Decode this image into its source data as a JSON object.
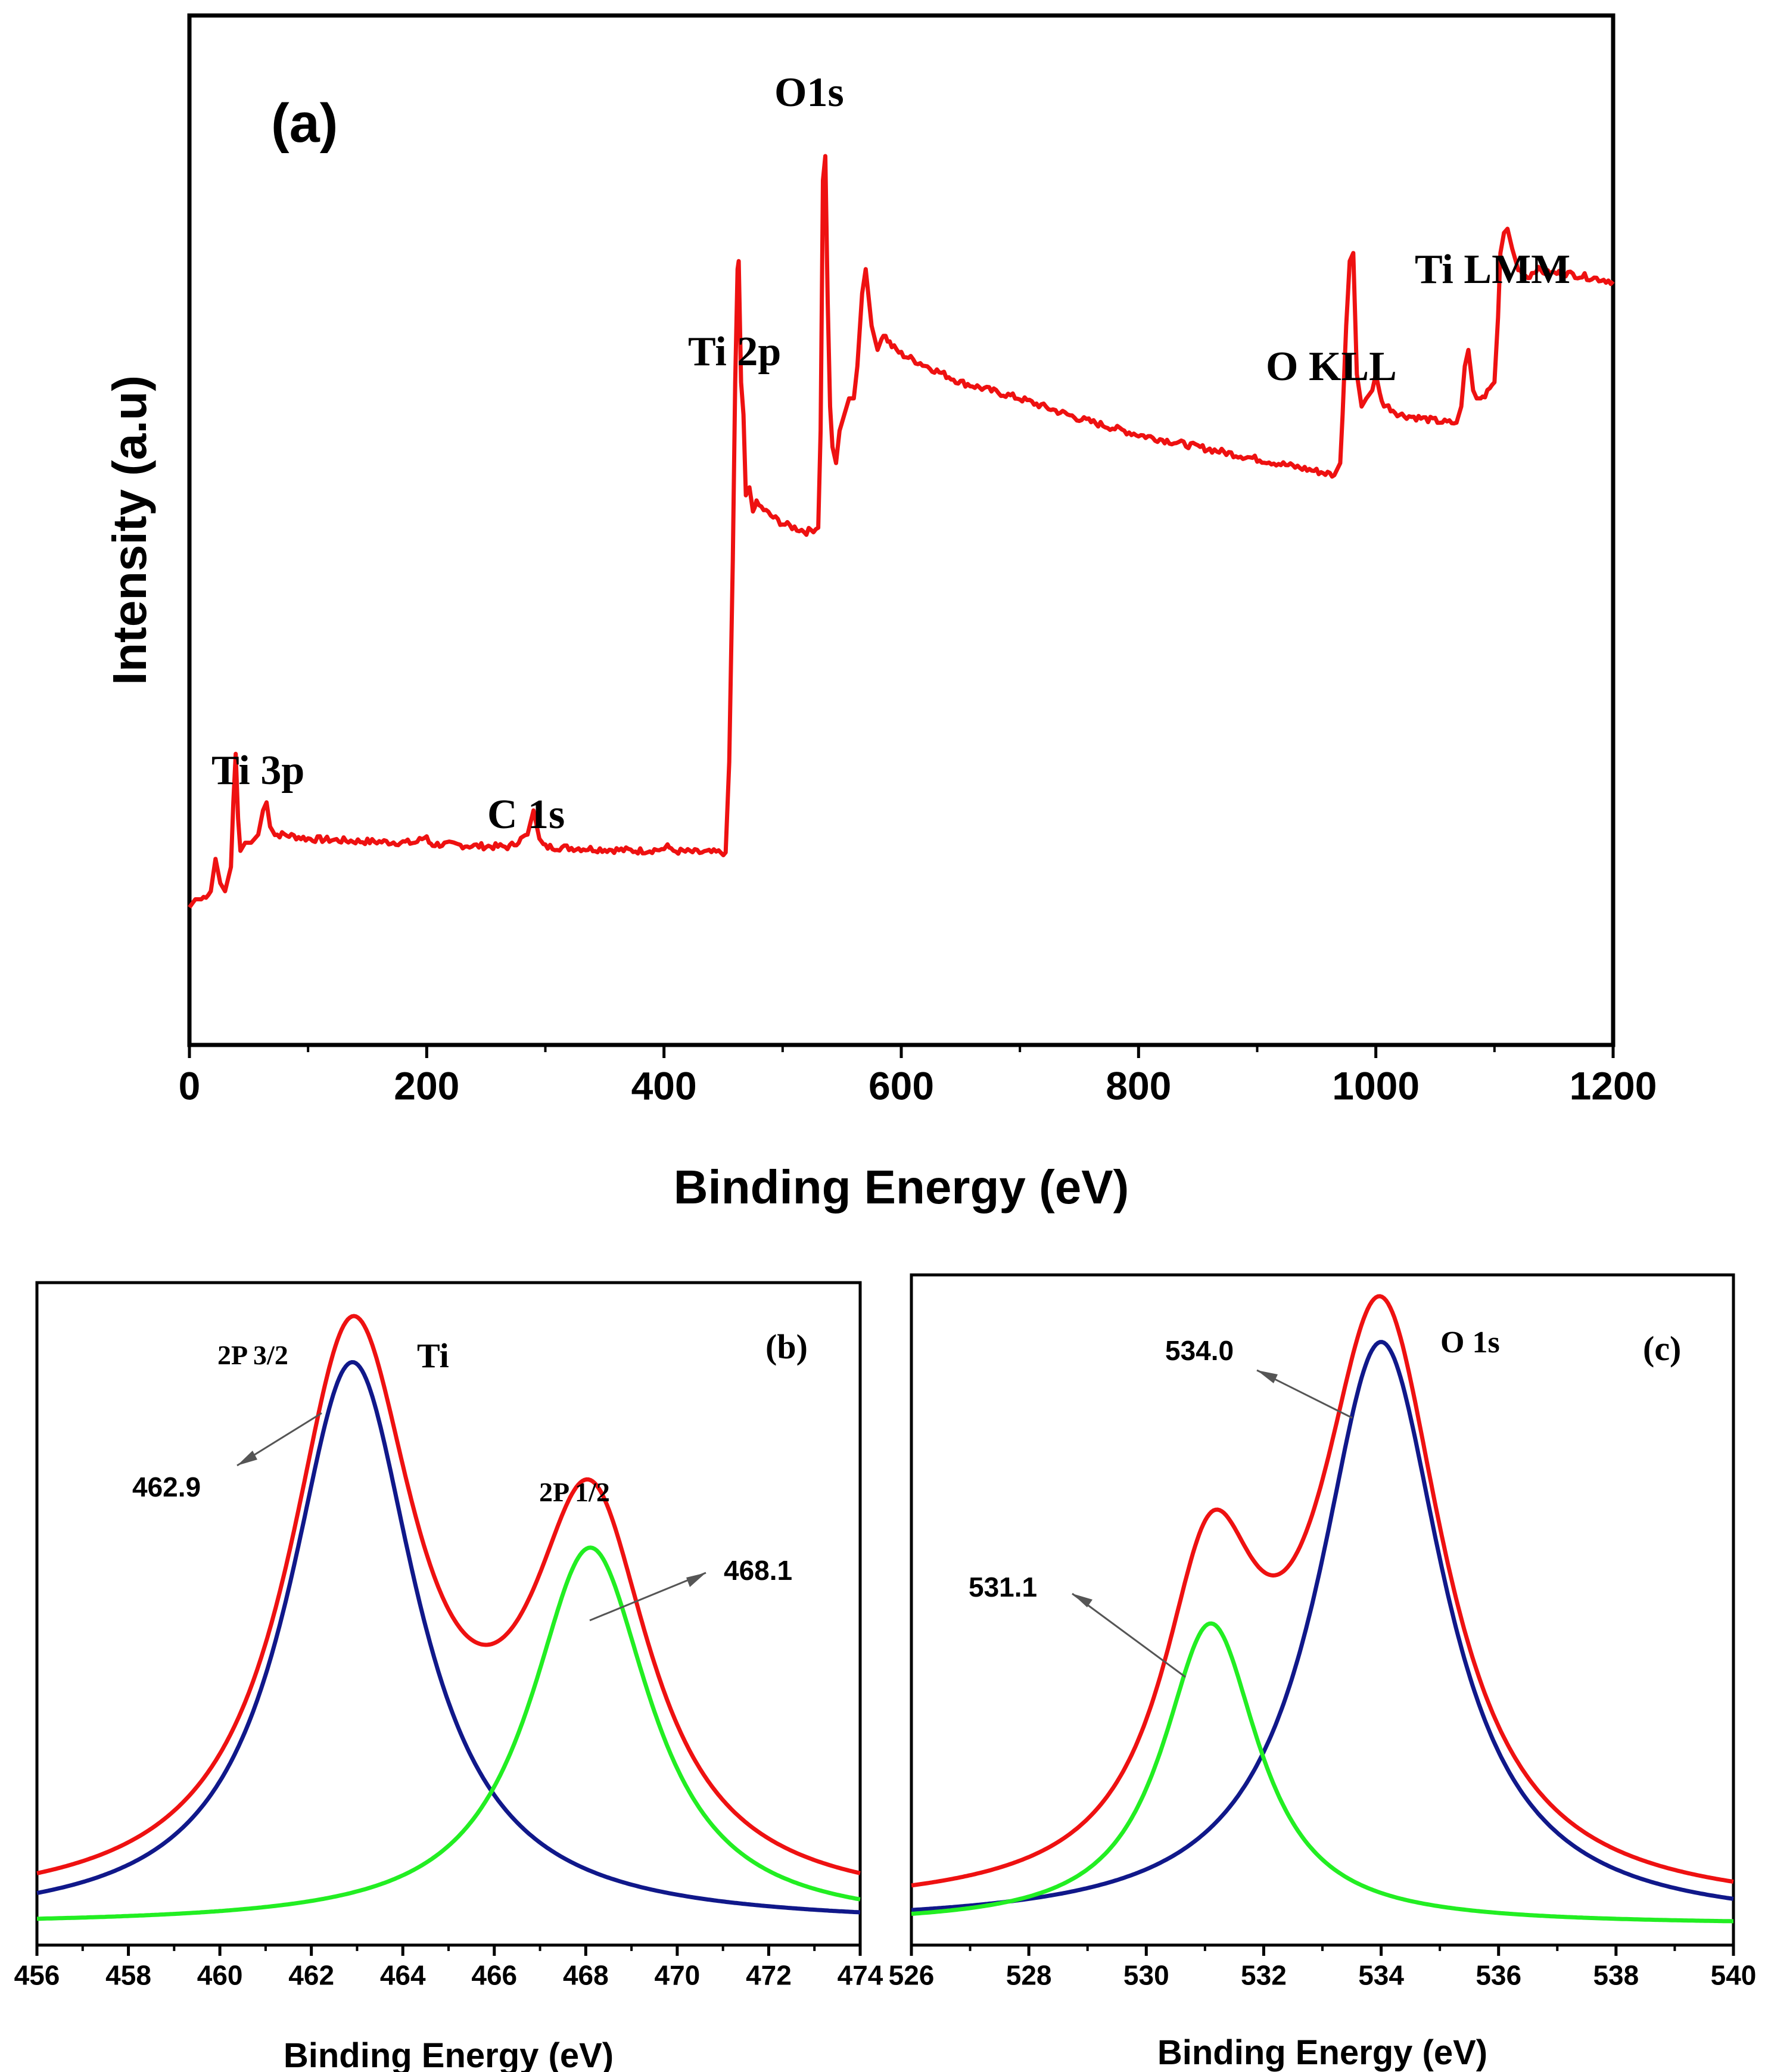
{
  "colors": {
    "red": "#ee1111",
    "blue": "#10188a",
    "green": "#22ee22",
    "axis": "#000000",
    "arrow": "#555555"
  },
  "chart_data": [
    {
      "type": "line",
      "panel_label": "(a)",
      "xlabel": "Binding Energy (eV)",
      "ylabel": "Intensity (a.u)",
      "xlim": [
        0,
        1200
      ],
      "ylim": [
        0,
        1
      ],
      "xticks": [
        0,
        200,
        400,
        600,
        800,
        1000,
        1200
      ],
      "grid": false,
      "series": [
        {
          "color": "red",
          "x": [
            0,
            5,
            10,
            18,
            22,
            26,
            30,
            35,
            37,
            39,
            41,
            43,
            47,
            52,
            58,
            62,
            65,
            68,
            72,
            80,
            100,
            140,
            190,
            200,
            202,
            205,
            215,
            240,
            270,
            285,
            290,
            295,
            300,
            330,
            380,
            400,
            403,
            406,
            430,
            452,
            455,
            458,
            460,
            462,
            463,
            465,
            467,
            469,
            472,
            475,
            478,
            490,
            500,
            510,
            520,
            530,
            532,
            534,
            536,
            538,
            540,
            542,
            545,
            548,
            552,
            556,
            560,
            563,
            567,
            570,
            575,
            580,
            585,
            592,
            600,
            650,
            700,
            750,
            800,
            850,
            900,
            950,
            965,
            970,
            972,
            975,
            978,
            981,
            984,
            988,
            992,
            997,
            1000,
            1005,
            1020,
            1040,
            1060,
            1068,
            1072,
            1075,
            1078,
            1082,
            1085,
            1090,
            1100,
            1103,
            1105,
            1108,
            1111,
            1115,
            1120,
            1128,
            1135,
            1145,
            1160,
            1180,
            1200
          ],
          "values": [
            0.07,
            0.08,
            0.08,
            0.09,
            0.13,
            0.1,
            0.09,
            0.12,
            0.2,
            0.26,
            0.18,
            0.14,
            0.15,
            0.15,
            0.16,
            0.19,
            0.2,
            0.17,
            0.16,
            0.16,
            0.155,
            0.152,
            0.15,
            0.158,
            0.15,
            0.148,
            0.148,
            0.146,
            0.145,
            0.16,
            0.19,
            0.155,
            0.145,
            0.143,
            0.14,
            0.142,
            0.148,
            0.14,
            0.138,
            0.138,
            0.25,
            0.5,
            0.72,
            0.86,
            0.87,
            0.72,
            0.68,
            0.58,
            0.59,
            0.56,
            0.57,
            0.555,
            0.545,
            0.54,
            0.535,
            0.54,
            0.66,
            0.97,
            1.0,
            0.82,
            0.69,
            0.64,
            0.62,
            0.66,
            0.68,
            0.7,
            0.7,
            0.74,
            0.83,
            0.86,
            0.79,
            0.76,
            0.78,
            0.765,
            0.755,
            0.72,
            0.7,
            0.675,
            0.655,
            0.64,
            0.625,
            0.61,
            0.605,
            0.62,
            0.68,
            0.79,
            0.87,
            0.88,
            0.73,
            0.69,
            0.7,
            0.71,
            0.73,
            0.695,
            0.68,
            0.675,
            0.67,
            0.67,
            0.69,
            0.74,
            0.76,
            0.71,
            0.7,
            0.7,
            0.72,
            0.8,
            0.88,
            0.905,
            0.91,
            0.885,
            0.86,
            0.85,
            0.86,
            0.855,
            0.855,
            0.85,
            0.845
          ]
        }
      ],
      "annotations": [
        "Ti 3p",
        "C 1s",
        "Ti 2p",
        "O1s",
        "O KLL",
        "Ti LMM"
      ]
    },
    {
      "type": "line",
      "panel_label": "(b)",
      "xlabel": "Binding Energy (eV)",
      "xlim": [
        456,
        474
      ],
      "xticks": [
        456,
        458,
        460,
        462,
        464,
        466,
        468,
        470,
        472,
        474
      ],
      "xtick_labels": [
        "456",
        "458",
        "460",
        "462",
        "464",
        "466",
        "468",
        "470",
        "472",
        "474"
      ],
      "grid": false,
      "element_label": "Ti",
      "peak_labels": [
        "2P 3/2",
        "2P 1/2"
      ],
      "peak_values": [
        "462.9",
        "468.1"
      ],
      "series": [
        {
          "color": "blue",
          "shape": "lorentzian",
          "center": 462.9,
          "amplitude": 0.85,
          "hwhm": 1.7,
          "baseline": 0.0
        },
        {
          "color": "green",
          "shape": "lorentzian",
          "center": 468.1,
          "amplitude": 0.57,
          "hwhm": 1.6,
          "baseline": 0.0
        },
        {
          "color": "red",
          "shape": "envelope",
          "sum_of": [
            0,
            1
          ],
          "offset": 0.02
        }
      ],
      "ylim": [
        -0.03,
        0.97
      ]
    },
    {
      "type": "line",
      "panel_label": "(c)",
      "xlabel": "Binding Energy (eV)",
      "xlim": [
        526,
        540
      ],
      "xticks": [
        526,
        528,
        530,
        532,
        534,
        536,
        538,
        540
      ],
      "xtick_labels": [
        "526",
        "528",
        "530",
        "532",
        "534",
        "536",
        "538",
        "540"
      ],
      "grid": false,
      "element_label": "O 1s",
      "peak_values": [
        "534.0",
        "531.1"
      ],
      "series": [
        {
          "color": "blue",
          "shape": "lorentzian",
          "center": 534.0,
          "amplitude": 0.87,
          "hwhm": 1.3,
          "baseline": 0.0
        },
        {
          "color": "green",
          "shape": "lorentzian",
          "center": 531.1,
          "amplitude": 0.45,
          "hwhm": 1.0,
          "baseline": 0.0
        },
        {
          "color": "red",
          "shape": "envelope",
          "sum_of": [
            0,
            1
          ],
          "offset": 0.02
        }
      ],
      "ylim": [
        -0.03,
        0.97
      ]
    }
  ]
}
